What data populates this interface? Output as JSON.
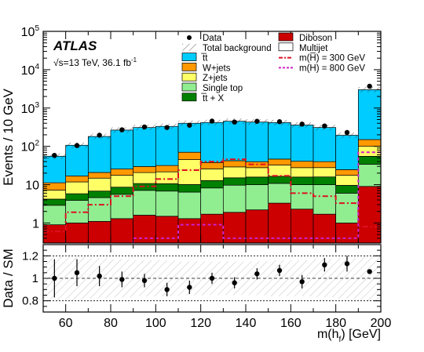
{
  "chart_data": [
    {
      "type": "bar",
      "stacked": true,
      "log_y": true,
      "xlabel": "m(h",
      "xlabel_sub": "f",
      "xlabel_tail": ") [GeV]",
      "ylabel": "Events / 10 GeV",
      "xlim": [
        50,
        200
      ],
      "ylim": [
        0.3,
        100000
      ],
      "x_ticks": [
        "60",
        "80",
        "100",
        "120",
        "140",
        "160",
        "180",
        "200"
      ],
      "y_ticks": [
        "1",
        "10",
        "10",
        "10",
        "10",
        "10"
      ],
      "y_tick_exponents": [
        "",
        "",
        "2",
        "3",
        "4",
        "5"
      ],
      "bin_edges": [
        50,
        60,
        70,
        80,
        90,
        100,
        110,
        120,
        130,
        140,
        150,
        160,
        170,
        180,
        190,
        200
      ],
      "series": [
        {
          "name": "Diboson",
          "color": "#cc0000",
          "values": [
            0.9,
            1.0,
            1.1,
            1.3,
            1.6,
            1.5,
            1.3,
            1.7,
            1.9,
            2.2,
            3.3,
            2.3,
            1.7,
            1.0,
            9.0
          ]
        },
        {
          "name": "Single top",
          "color": "#90ee90",
          "values": [
            2.0,
            2.9,
            3.5,
            4.3,
            5.5,
            5.3,
            5.1,
            6.5,
            7.8,
            7.8,
            7.5,
            7.7,
            8.3,
            5.0,
            25.0
          ]
        },
        {
          "name": "t̅t + X",
          "color": "#008000",
          "values": [
            1.3,
            1.9,
            2.2,
            3.0,
            3.6,
            3.8,
            3.7,
            4.6,
            5.4,
            5.8,
            5.7,
            5.8,
            5.9,
            3.6,
            21.0
          ]
        },
        {
          "name": "Z+jets",
          "color": "#ffff66",
          "values": [
            3.0,
            6.0,
            8.0,
            9.0,
            10.0,
            11.0,
            35.0,
            13.0,
            14.0,
            12.0,
            16.0,
            12.0,
            12.0,
            8.0,
            45.0
          ]
        },
        {
          "name": "W+jets",
          "color": "#ff9900",
          "values": [
            4.0,
            5.0,
            6.0,
            8.0,
            9.0,
            10.0,
            25.0,
            12.0,
            13.0,
            12.0,
            14.0,
            13.0,
            12.0,
            7.0,
            50.0
          ]
        },
        {
          "name": "Multijet",
          "color": "#ffffff",
          "values": [
            0.0,
            0.0,
            0.0,
            0.0,
            0.0,
            0.0,
            0.0,
            0.0,
            0.0,
            0.0,
            0.0,
            0.0,
            0.0,
            0.0,
            0.0
          ]
        },
        {
          "name": "t̅t",
          "color": "#00ccff",
          "values": [
            44.0,
            90.0,
            160.0,
            240.0,
            280.0,
            300.0,
            330.0,
            380.0,
            410.0,
            390.0,
            370.0,
            320.0,
            270.0,
            170.0,
            2850.0
          ]
        }
      ],
      "data_points": {
        "name": "Data",
        "x": [
          55,
          65,
          75,
          85,
          95,
          105,
          115,
          125,
          135,
          145,
          155,
          165,
          175,
          185,
          195
        ],
        "y": [
          58,
          105,
          195,
          270,
          320,
          310,
          355,
          455,
          430,
          450,
          440,
          380,
          340,
          230,
          3700
        ]
      },
      "signals": [
        {
          "name": "m(H̅) = 300 GeV",
          "color": "#dd1122",
          "style": "dashdot",
          "values": [
            0.6,
            1.9,
            3.0,
            5.0,
            9.0,
            14.0,
            24.0,
            40.0,
            46.0,
            34.0,
            17.0,
            6.0,
            5.0,
            3.3,
            0.8
          ]
        },
        {
          "name": "m(H) = 800 GeV",
          "color": "#cc22cc",
          "style": "dashed",
          "values": [
            0.0,
            0.0,
            0.0,
            0.0,
            0.4,
            0.4,
            0.9,
            0.9,
            0.4,
            0.4,
            0.4,
            0.4,
            0.4,
            0.4,
            70.0
          ]
        }
      ],
      "legend": {
        "placement": "top-right",
        "entries": [
          {
            "label": "Data",
            "kind": "marker"
          },
          {
            "label": "Total background",
            "kind": "hatch"
          },
          {
            "label": "t̅t",
            "kind": "fill",
            "color": "#00ccff"
          },
          {
            "label": "W+jets",
            "kind": "fill",
            "color": "#ff9900"
          },
          {
            "label": "Z+jets",
            "kind": "fill",
            "color": "#ffff66"
          },
          {
            "label": "Single top",
            "kind": "fill",
            "color": "#90ee90"
          },
          {
            "label": "t̅t + X",
            "kind": "fill",
            "color": "#008000"
          },
          {
            "label": "Diboson",
            "kind": "fill",
            "color": "#cc0000"
          },
          {
            "label": "Multijet",
            "kind": "fill",
            "color": "#ffffff"
          },
          {
            "label": "m(H̅) = 300 GeV",
            "kind": "dashdot",
            "color": "#dd1122"
          },
          {
            "label": "m(H) = 800 GeV",
            "kind": "dashed",
            "color": "#cc22cc"
          }
        ]
      },
      "annotations": {
        "experiment": "ATLAS",
        "energy_line": "√s=13 TeV, 36.1 fb",
        "energy_exponent": "-1"
      }
    },
    {
      "type": "scatter",
      "ylabel": "Data / SM",
      "xlim": [
        50,
        200
      ],
      "ylim": [
        0.7,
        1.3
      ],
      "y_ticks": [
        "0.8",
        "1",
        "1.2"
      ],
      "x": [
        55,
        65,
        75,
        85,
        95,
        105,
        115,
        125,
        135,
        145,
        155,
        165,
        175,
        185,
        195
      ],
      "y": [
        1.0,
        1.05,
        1.02,
        0.99,
        0.98,
        0.9,
        0.92,
        1.0,
        0.96,
        1.04,
        1.07,
        0.97,
        1.12,
        1.13,
        1.06
      ],
      "errors": [
        0.17,
        0.12,
        0.09,
        0.07,
        0.06,
        0.06,
        0.06,
        0.05,
        0.05,
        0.05,
        0.05,
        0.06,
        0.06,
        0.07,
        0.02
      ],
      "band": [
        0.2,
        0.19,
        0.18,
        0.17,
        0.16,
        0.16,
        0.15,
        0.15,
        0.15,
        0.15,
        0.16,
        0.16,
        0.17,
        0.18,
        0.2
      ]
    }
  ]
}
